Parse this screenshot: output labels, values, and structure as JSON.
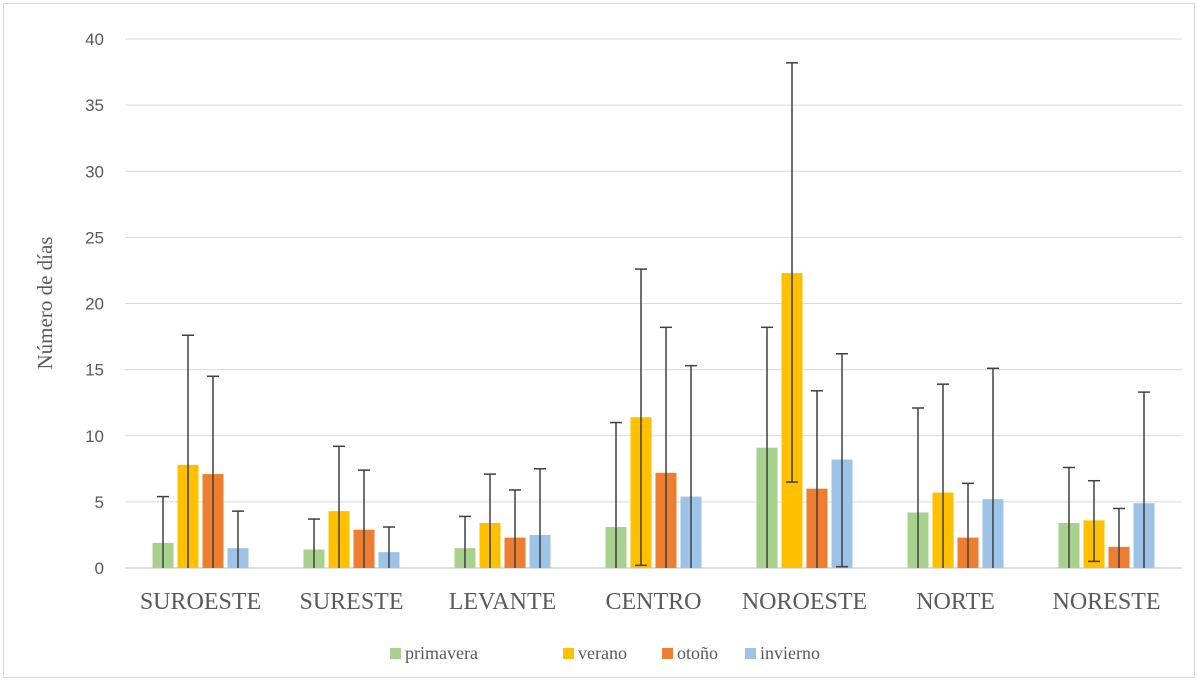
{
  "chart_data": {
    "type": "bar",
    "title": "",
    "xlabel": "",
    "ylabel": "Número de días",
    "ylim": [
      0,
      40
    ],
    "yticks": [
      0,
      5,
      10,
      15,
      20,
      25,
      30,
      35,
      40
    ],
    "grid": true,
    "legend_position": "bottom",
    "categories": [
      "SUROESTE",
      "SURESTE",
      "LEVANTE",
      "CENTRO",
      "NOROESTE",
      "NORTE",
      "NORESTE"
    ],
    "series": [
      {
        "name": "primavera",
        "color": "#a9d18e",
        "values": [
          1.9,
          1.4,
          1.5,
          3.1,
          9.1,
          4.2,
          3.4
        ],
        "error_upper": [
          5.4,
          3.7,
          3.9,
          11.0,
          18.2,
          12.1,
          7.6
        ],
        "error_lower": [
          0,
          0,
          0,
          0,
          0,
          0,
          0
        ]
      },
      {
        "name": "verano",
        "color": "#ffc000",
        "values": [
          7.8,
          4.3,
          3.4,
          11.4,
          22.3,
          5.7,
          3.6
        ],
        "error_upper": [
          17.6,
          9.2,
          7.1,
          22.6,
          38.2,
          13.9,
          6.6
        ],
        "error_lower": [
          0,
          0,
          0,
          0.2,
          6.5,
          0,
          0.5
        ]
      },
      {
        "name": "otoño",
        "color": "#ed7d31",
        "values": [
          7.1,
          2.9,
          2.3,
          7.2,
          6.0,
          2.3,
          1.6
        ],
        "error_upper": [
          14.5,
          7.4,
          5.9,
          18.2,
          13.4,
          6.4,
          4.5
        ],
        "error_lower": [
          0,
          0,
          0,
          0,
          0,
          0,
          0
        ]
      },
      {
        "name": "invierno",
        "color": "#9dc3e6",
        "values": [
          1.5,
          1.2,
          2.5,
          5.4,
          8.2,
          5.2,
          4.9
        ],
        "error_upper": [
          4.3,
          3.1,
          7.5,
          15.3,
          16.2,
          15.1,
          13.3
        ],
        "error_lower": [
          0,
          0,
          0,
          0,
          0.1,
          0,
          0
        ]
      }
    ]
  }
}
